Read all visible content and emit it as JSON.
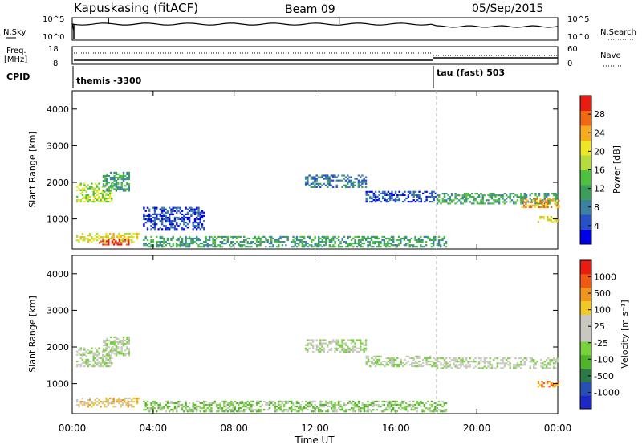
{
  "header": {
    "station": "Kapuskasing (fitACF)",
    "beam": "Beam 09",
    "date": "05/Sep/2015"
  },
  "strip1": {
    "left_label": "N.Sky",
    "right_label": "N.Search",
    "left_ticks": [
      "10^5",
      "10^0"
    ],
    "right_ticks": [
      "10^5",
      "10^0"
    ]
  },
  "strip2": {
    "left_label_1": "Freq.",
    "left_label_2": "[MHz]",
    "right_label": "Nave",
    "left_ticks": [
      "18",
      "8"
    ],
    "right_ticks": [
      "60",
      "0"
    ]
  },
  "cpid": {
    "label": "CPID",
    "programs": [
      {
        "name": "themis -3300",
        "start_hour": 0
      },
      {
        "name": "tau (fast) 503",
        "start_hour": 18
      }
    ]
  },
  "chart_data": [
    {
      "type": "heatmap",
      "title": "Power",
      "ylabel": "Slant Range [km]",
      "xlabel": "Time UT",
      "x_ticks": [
        "00:00",
        "04:00",
        "08:00",
        "12:00",
        "16:00",
        "20:00",
        "00:00"
      ],
      "y_ticks": [
        1000,
        2000,
        3000,
        4000
      ],
      "ylim": [
        180,
        4500
      ],
      "xlim_hours": [
        0,
        24
      ],
      "colorbar": {
        "label": "Power [dB]",
        "ticks": [
          "28",
          "24",
          "20",
          "16",
          "12",
          "8",
          "4"
        ],
        "colors": [
          "#0000e8",
          "#2850c8",
          "#3c82a0",
          "#3c9e5a",
          "#50c040",
          "#b4dc3c",
          "#f0e628",
          "#f8aa20",
          "#f06a14",
          "#e81c10"
        ]
      },
      "echo_bands": [
        {
          "t0": 0.2,
          "t1": 2.0,
          "r0": 1450,
          "r1": 1950,
          "level": 5
        },
        {
          "t0": 1.5,
          "t1": 2.8,
          "r0": 1750,
          "r1": 2250,
          "level": 3
        },
        {
          "t0": 0.2,
          "t1": 3.3,
          "r0": 350,
          "r1": 600,
          "level": 6
        },
        {
          "t0": 1.3,
          "t1": 2.8,
          "r0": 280,
          "r1": 430,
          "level": 9
        },
        {
          "t0": 3.5,
          "t1": 18.5,
          "r0": 220,
          "r1": 520,
          "level": 3
        },
        {
          "t0": 11.5,
          "t1": 14.5,
          "r0": 1850,
          "r1": 2200,
          "level": 2
        },
        {
          "t0": 14.5,
          "t1": 18.0,
          "r0": 1450,
          "r1": 1750,
          "level": 1
        },
        {
          "t0": 18.0,
          "t1": 24.0,
          "r0": 1400,
          "r1": 1700,
          "level": 3
        },
        {
          "t0": 22.2,
          "t1": 24.0,
          "r0": 1300,
          "r1": 1550,
          "level": 7
        },
        {
          "t0": 23.0,
          "t1": 24.0,
          "r0": 900,
          "r1": 1050,
          "level": 6
        },
        {
          "t0": 3.5,
          "t1": 6.5,
          "r0": 700,
          "r1": 1300,
          "level": 1
        }
      ]
    },
    {
      "type": "heatmap",
      "title": "Velocity",
      "ylabel": "Slant Range [km]",
      "xlabel": "Time UT",
      "x_ticks": [
        "00:00",
        "04:00",
        "08:00",
        "12:00",
        "16:00",
        "20:00",
        "00:00"
      ],
      "y_ticks": [
        1000,
        2000,
        3000,
        4000
      ],
      "ylim": [
        180,
        4500
      ],
      "xlim_hours": [
        0,
        24
      ],
      "colorbar": {
        "label": "Velocity [m s⁻¹]",
        "ticks": [
          "1000",
          "500",
          "100",
          "25",
          "-25",
          "-100",
          "-500",
          "-1000"
        ],
        "colors": [
          "#1e28c8",
          "#2850b4",
          "#2c7846",
          "#50b428",
          "#78d23c",
          "#c8c8c0",
          "#c8c8c0",
          "#f0c828",
          "#f0961e",
          "#f05a14",
          "#e81c10"
        ]
      },
      "echo_bands": [
        {
          "t0": 0.2,
          "t1": 2.0,
          "r0": 1450,
          "r1": 1950,
          "level": 5
        },
        {
          "t0": 1.5,
          "t1": 2.8,
          "r0": 1750,
          "r1": 2250,
          "level": 5
        },
        {
          "t0": 0.2,
          "t1": 3.3,
          "r0": 350,
          "r1": 600,
          "level": 7
        },
        {
          "t0": 3.5,
          "t1": 18.5,
          "r0": 220,
          "r1": 520,
          "level": 4
        },
        {
          "t0": 11.5,
          "t1": 14.5,
          "r0": 1850,
          "r1": 2200,
          "level": 5
        },
        {
          "t0": 14.5,
          "t1": 18.0,
          "r0": 1450,
          "r1": 1750,
          "level": 5
        },
        {
          "t0": 18.0,
          "t1": 24.0,
          "r0": 1400,
          "r1": 1700,
          "level": 5
        },
        {
          "t0": 23.0,
          "t1": 24.0,
          "r0": 900,
          "r1": 1050,
          "level": 8
        }
      ]
    }
  ],
  "time_axis": {
    "label": "Time UT",
    "ticks": [
      "00:00",
      "04:00",
      "08:00",
      "12:00",
      "16:00",
      "20:00",
      "00:00"
    ]
  }
}
